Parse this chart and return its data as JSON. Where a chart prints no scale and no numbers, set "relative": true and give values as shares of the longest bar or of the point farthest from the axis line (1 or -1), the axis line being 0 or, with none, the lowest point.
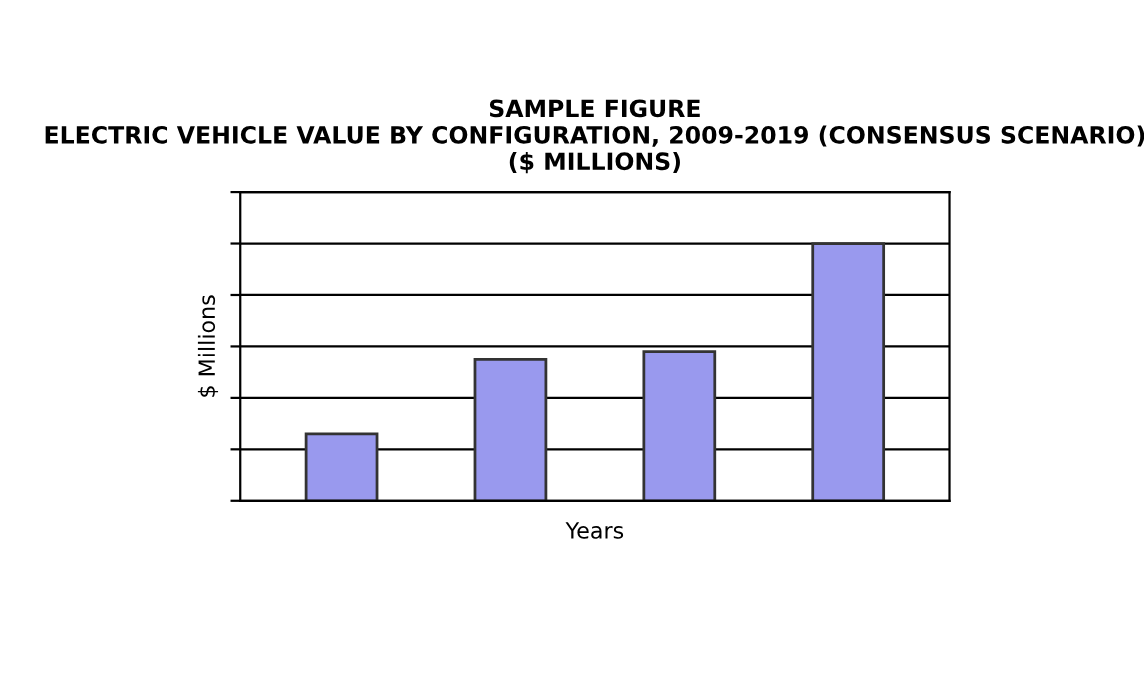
{
  "chart_data": {
    "type": "bar",
    "title": "SAMPLE FIGURE\nELECTRIC VEHICLE VALUE BY CONFIGURATION, 2009-2019 (CONSENSUS SCENARIO)\n($ MILLIONS)",
    "xlabel": "Years",
    "ylabel": "$ Millions",
    "categories": [
      null,
      null,
      null,
      null
    ],
    "values": [
      0.26,
      0.55,
      0.58,
      1
    ],
    "color": "#9999ee",
    "relative": true,
    "grid": "y"
  }
}
